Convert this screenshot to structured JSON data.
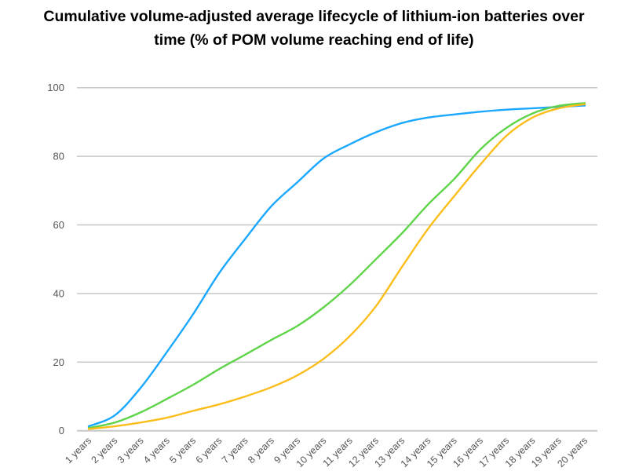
{
  "chart_data": {
    "type": "line",
    "title_lines": [
      "Cumulative volume-adjusted average lifecycle of lithium-ion batteries over",
      "time (% of POM volume reaching end of life)"
    ],
    "xlabel": "",
    "ylabel": "",
    "ylim": [
      0,
      100
    ],
    "yticks": [
      "0",
      "20",
      "40",
      "60",
      "80",
      "100"
    ],
    "grid": true,
    "legend": "none",
    "categories": [
      "1 years",
      "2 years",
      "3 years",
      "4 years",
      "5 years",
      "6 years",
      "7 years",
      "8 years",
      "9 years",
      "10 years",
      "11 years",
      "12 years",
      "13 years",
      "14 years",
      "15 years",
      "16 years",
      "17 years",
      "18 years",
      "19 years",
      "20 years"
    ],
    "series": [
      {
        "color": "#1aa7ff",
        "values": [
          1.3,
          4.5,
          12.6,
          23,
          34,
          46,
          56,
          65.5,
          72.5,
          79.4,
          83.5,
          87,
          89.7,
          91.3,
          92.2,
          93,
          93.6,
          94,
          94.4,
          94.8
        ]
      },
      {
        "color": "#5fd44a",
        "values": [
          0.8,
          2.4,
          5.4,
          9.3,
          13.4,
          18,
          22.2,
          26.5,
          30.6,
          36,
          42.5,
          50,
          57.6,
          66,
          73.4,
          82,
          88.3,
          92.5,
          94.7,
          95.5
        ]
      },
      {
        "color": "#fbbd1a",
        "values": [
          0.5,
          1.3,
          2.4,
          3.8,
          5.8,
          7.7,
          10,
          12.7,
          16.2,
          21,
          27.6,
          36.3,
          47.8,
          58.9,
          68.4,
          77.6,
          86,
          91.3,
          94,
          95.2
        ]
      }
    ]
  }
}
